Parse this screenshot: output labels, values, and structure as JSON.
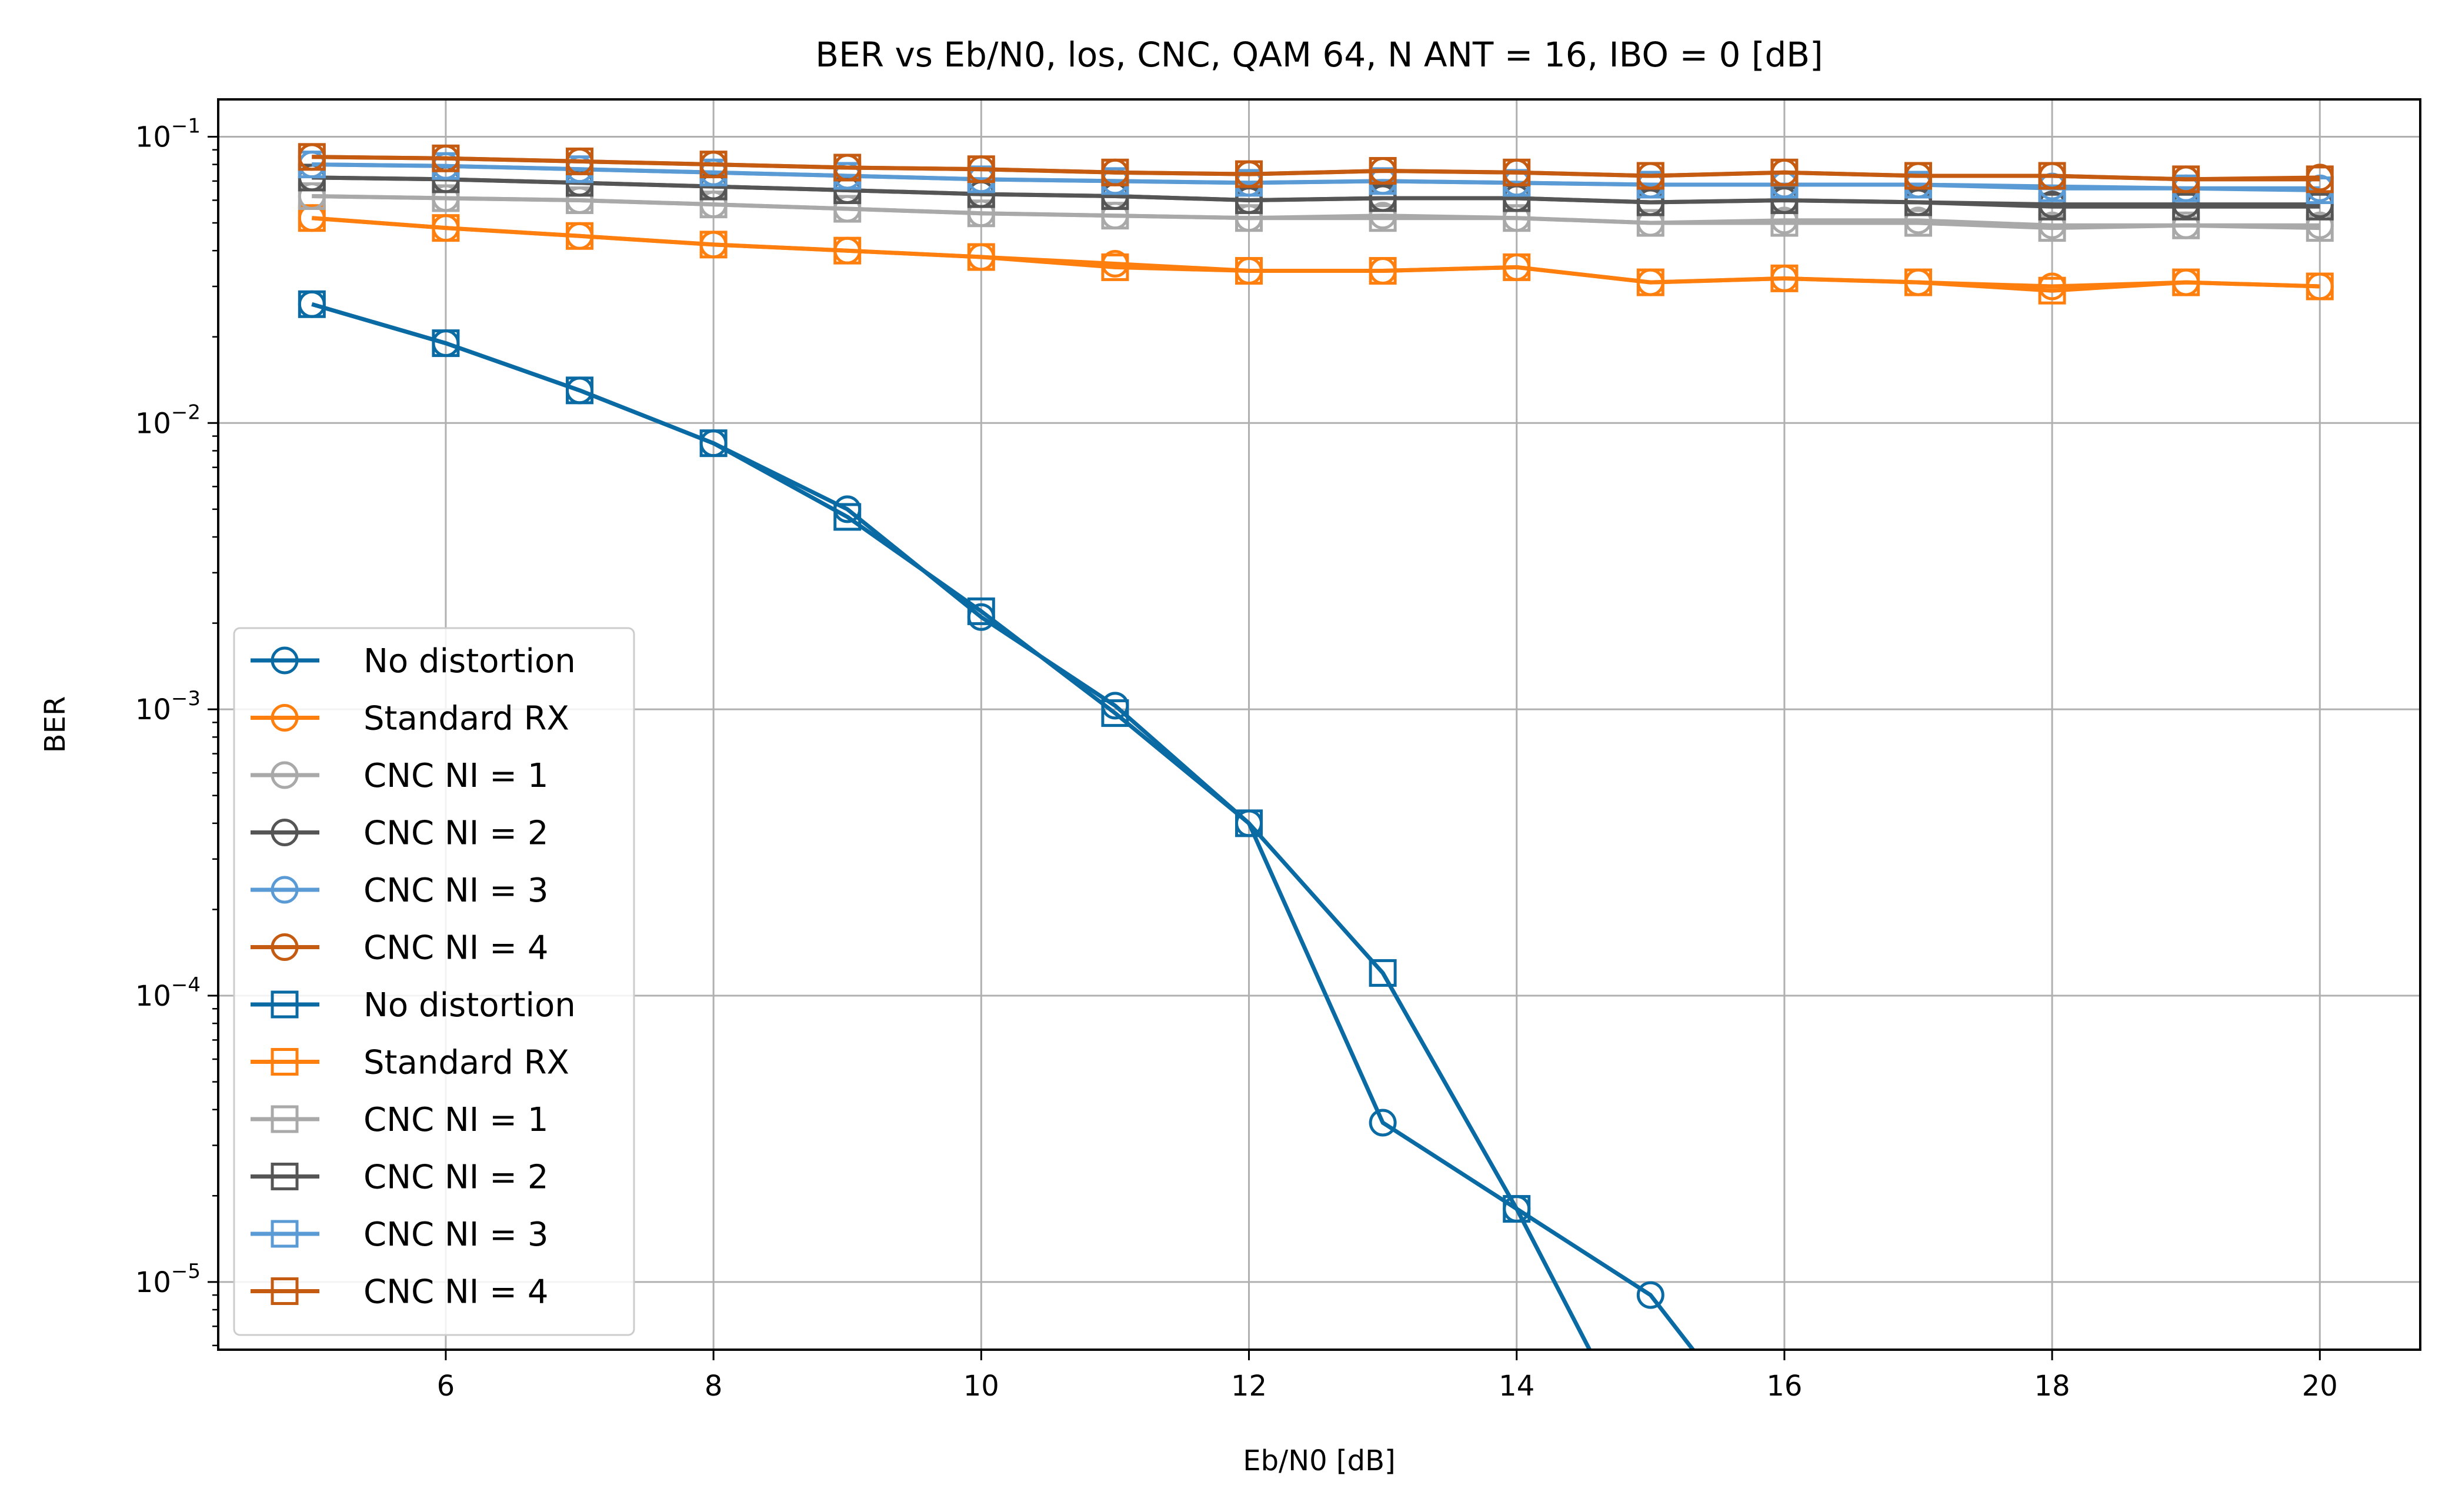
{
  "chart_data": {
    "type": "line",
    "title": "BER vs Eb/N0, los, CNC, QAM 64, N ANT = 16, IBO = 0 [dB]",
    "xlabel": "Eb/N0 [dB]",
    "ylabel": "BER",
    "yscale": "log",
    "xlim": [
      4.3,
      20.75
    ],
    "ylim": [
      5.8e-06,
      0.135
    ],
    "xticks": [
      "6",
      "8",
      "10",
      "12",
      "14",
      "16",
      "18",
      "20"
    ],
    "yticks": [
      {
        "base": "10",
        "exp": "−5"
      },
      {
        "base": "10",
        "exp": "−4"
      },
      {
        "base": "10",
        "exp": "−3"
      },
      {
        "base": "10",
        "exp": "−2"
      },
      {
        "base": "10",
        "exp": "−1"
      }
    ],
    "grid": true,
    "legend_position": "lower left",
    "x": [
      5,
      6,
      7,
      8,
      9,
      10,
      11,
      12,
      13,
      14,
      15,
      16,
      17,
      18,
      19,
      20
    ],
    "series": [
      {
        "name": "No distortion",
        "marker": "circle",
        "color": "#0a6aa3",
        "values": [
          0.026,
          0.019,
          0.013,
          0.0085,
          0.005,
          0.0021,
          0.00103,
          0.0004,
          3.6e-05,
          1.8e-05,
          9e-06,
          0,
          null,
          null,
          null,
          null
        ]
      },
      {
        "name": "Standard RX",
        "marker": "circle",
        "color": "#ff7f0e",
        "values": [
          0.052,
          0.048,
          0.045,
          0.042,
          0.04,
          0.038,
          0.036,
          0.034,
          0.034,
          0.035,
          0.031,
          0.032,
          0.031,
          0.03,
          0.031,
          0.03
        ]
      },
      {
        "name": "CNC NI = 1",
        "marker": "circle",
        "color": "#a9a9a9",
        "values": [
          0.062,
          0.061,
          0.06,
          0.058,
          0.056,
          0.054,
          0.053,
          0.052,
          0.053,
          0.052,
          0.05,
          0.051,
          0.051,
          0.049,
          0.049,
          0.049
        ]
      },
      {
        "name": "CNC NI = 2",
        "marker": "circle",
        "color": "#555555",
        "values": [
          0.072,
          0.071,
          0.069,
          0.067,
          0.065,
          0.063,
          0.062,
          0.06,
          0.061,
          0.061,
          0.059,
          0.06,
          0.059,
          0.058,
          0.058,
          0.058
        ]
      },
      {
        "name": "CNC NI = 3",
        "marker": "circle",
        "color": "#5b9bd5",
        "values": [
          0.08,
          0.079,
          0.077,
          0.075,
          0.073,
          0.071,
          0.07,
          0.069,
          0.07,
          0.069,
          0.068,
          0.068,
          0.068,
          0.067,
          0.066,
          0.066
        ]
      },
      {
        "name": "CNC NI = 4",
        "marker": "circle",
        "color": "#c55a11",
        "values": [
          0.085,
          0.084,
          0.082,
          0.08,
          0.078,
          0.077,
          0.075,
          0.074,
          0.076,
          0.075,
          0.073,
          0.075,
          0.073,
          0.073,
          0.071,
          0.072
        ]
      },
      {
        "name": "No distortion",
        "marker": "square",
        "color": "#0a6aa3",
        "values": [
          0.026,
          0.019,
          0.013,
          0.0085,
          0.0047,
          0.0022,
          0.00097,
          0.0004,
          0.00012,
          1.8e-05,
          0,
          null,
          null,
          null,
          null,
          null
        ]
      },
      {
        "name": "Standard RX",
        "marker": "square",
        "color": "#ff7f0e",
        "values": [
          0.052,
          0.048,
          0.045,
          0.042,
          0.04,
          0.038,
          0.035,
          0.034,
          0.034,
          0.035,
          0.031,
          0.032,
          0.031,
          0.029,
          0.031,
          0.03
        ]
      },
      {
        "name": "CNC NI = 1",
        "marker": "square",
        "color": "#a9a9a9",
        "values": [
          0.062,
          0.061,
          0.06,
          0.058,
          0.056,
          0.054,
          0.053,
          0.052,
          0.052,
          0.052,
          0.05,
          0.05,
          0.05,
          0.048,
          0.049,
          0.048
        ]
      },
      {
        "name": "CNC NI = 2",
        "marker": "square",
        "color": "#555555",
        "values": [
          0.072,
          0.071,
          0.069,
          0.067,
          0.065,
          0.063,
          0.062,
          0.06,
          0.061,
          0.061,
          0.059,
          0.06,
          0.059,
          0.057,
          0.057,
          0.057
        ]
      },
      {
        "name": "CNC NI = 3",
        "marker": "square",
        "color": "#5b9bd5",
        "values": [
          0.08,
          0.079,
          0.077,
          0.075,
          0.073,
          0.071,
          0.07,
          0.069,
          0.07,
          0.069,
          0.068,
          0.068,
          0.068,
          0.066,
          0.066,
          0.065
        ]
      },
      {
        "name": "CNC NI = 4",
        "marker": "square",
        "color": "#c55a11",
        "values": [
          0.085,
          0.084,
          0.082,
          0.08,
          0.078,
          0.077,
          0.075,
          0.074,
          0.076,
          0.075,
          0.073,
          0.075,
          0.073,
          0.073,
          0.071,
          0.071
        ]
      }
    ]
  }
}
